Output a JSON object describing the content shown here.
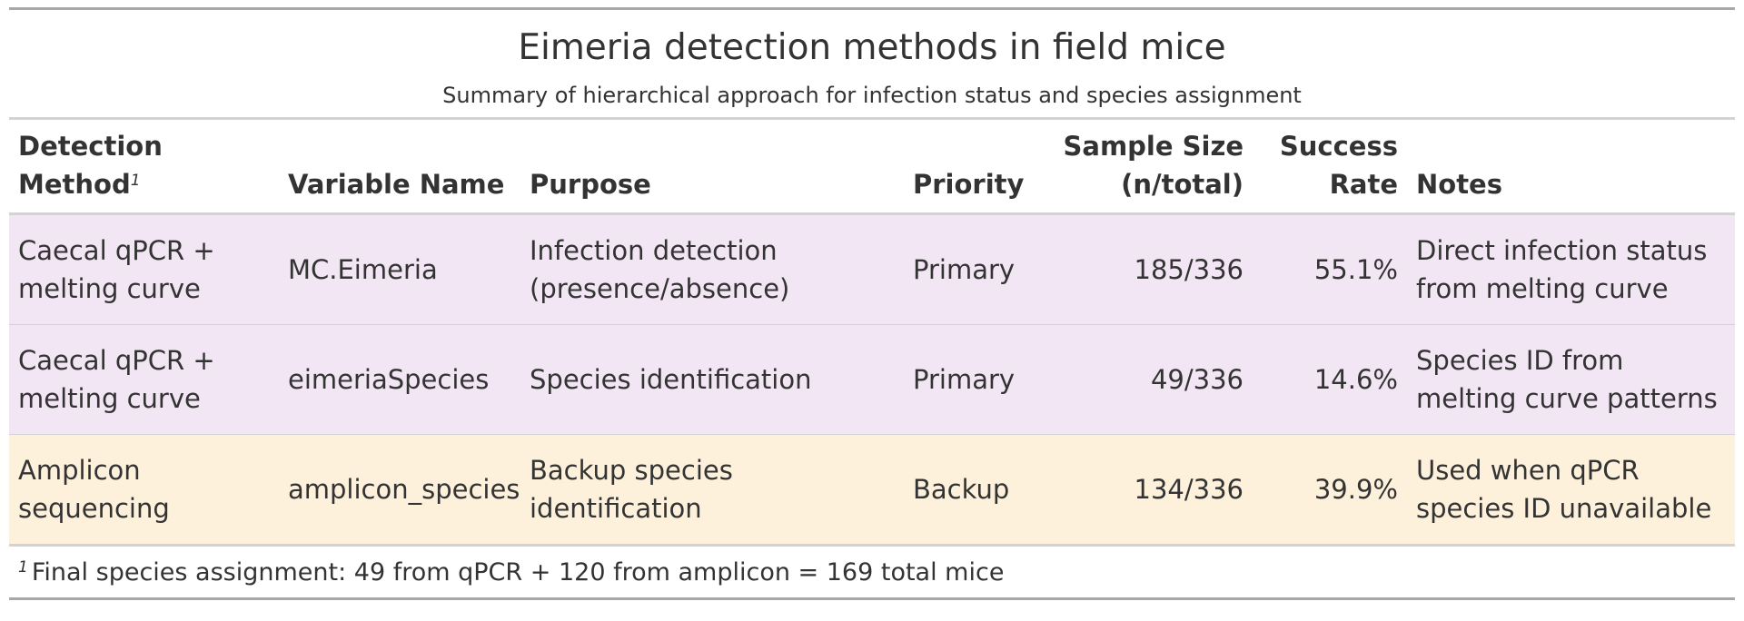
{
  "title": "Eimeria detection methods in field mice",
  "subtitle": "Summary of hierarchical approach for infection status and species assignment",
  "columns": {
    "method": "Detection Method",
    "method_mark": "1",
    "variable": "Variable Name",
    "purpose": "Purpose",
    "priority": "Priority",
    "sample_size": "Sample Size (n/total)",
    "success_rate": "Success Rate",
    "notes": "Notes"
  },
  "rows": [
    {
      "method": "Caecal qPCR + melting curve",
      "variable": "MC.Eimeria",
      "purpose": "Infection detection (presence/absence)",
      "priority": "Primary",
      "sample_size": "185/336",
      "success_rate": "55.1%",
      "notes": "Direct infection status from melting curve",
      "bg": "#f2e5f4"
    },
    {
      "method": "Caecal qPCR + melting curve",
      "variable": "eimeriaSpecies",
      "purpose": "Species identification",
      "priority": "Primary",
      "sample_size": "49/336",
      "success_rate": "14.6%",
      "notes": "Species ID from melting curve patterns",
      "bg": "#f2e5f4"
    },
    {
      "method": "Amplicon sequencing",
      "variable": "amplicon_species",
      "purpose": "Backup species identification",
      "priority": "Backup",
      "sample_size": "134/336",
      "success_rate": "39.9%",
      "notes": "Used when qPCR species ID unavailable",
      "bg": "#fdf1dc"
    }
  ],
  "footnote": {
    "mark": "1",
    "text": "Final species assignment: 49 from qPCR + 120 from amplicon = 169 total mice"
  }
}
